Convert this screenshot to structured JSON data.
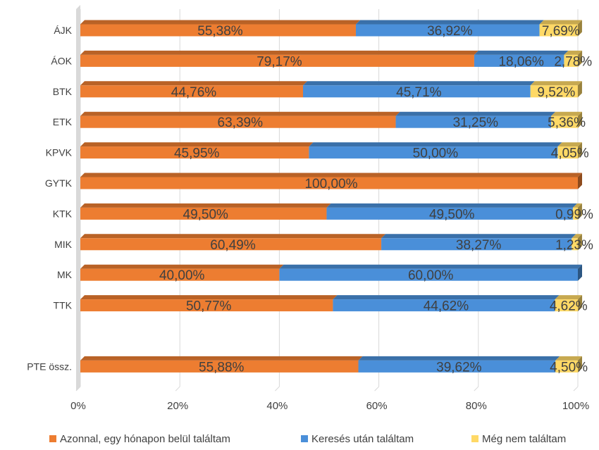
{
  "chart_data": {
    "type": "bar",
    "orientation": "horizontal",
    "stacked": "percent",
    "style": "3d",
    "categories": [
      "ÁJK",
      "ÁOK",
      "BTK",
      "ETK",
      "KPVK",
      "GYTK",
      "KTK",
      "MIK",
      "MK",
      "TTK",
      "",
      "PTE össz."
    ],
    "series": [
      {
        "name": "Azonnal, egy hónapon belül találtam",
        "color": "#ED7D31",
        "values": [
          55.38,
          79.17,
          44.76,
          63.39,
          45.95,
          100.0,
          49.5,
          60.49,
          40.0,
          50.77,
          null,
          55.88
        ],
        "labels": [
          "55,38%",
          "79,17%",
          "44,76%",
          "63,39%",
          "45,95%",
          "100,00%",
          "49,50%",
          "60,49%",
          "40,00%",
          "50,77%",
          "",
          "55,88%"
        ]
      },
      {
        "name": "Keresés után találtam",
        "color": "#4A8FD9",
        "values": [
          36.92,
          18.06,
          45.71,
          31.25,
          50.0,
          0,
          49.5,
          38.27,
          60.0,
          44.62,
          null,
          39.62
        ],
        "labels": [
          "36,92%",
          "18,06%",
          "45,71%",
          "31,25%",
          "50,00%",
          "",
          "49,50%",
          "38,27%",
          "60,00%",
          "44,62%",
          "",
          "39,62%"
        ]
      },
      {
        "name": "Még nem találtam",
        "color": "#FFD966",
        "values": [
          7.69,
          2.78,
          9.52,
          5.36,
          4.05,
          0,
          0.99,
          1.23,
          0,
          4.62,
          null,
          4.5
        ],
        "labels": [
          "7,69%",
          "2,78%",
          "9,52%",
          "5,36%",
          "4,05%",
          "",
          "0,99%",
          "1,23%",
          "",
          "4,62%",
          "",
          "4,50%"
        ]
      }
    ],
    "xlim": [
      0,
      100
    ],
    "x_ticks": [
      "0%",
      "20%",
      "40%",
      "60%",
      "80%",
      "100%"
    ],
    "grid": true,
    "legend": "bottom"
  }
}
